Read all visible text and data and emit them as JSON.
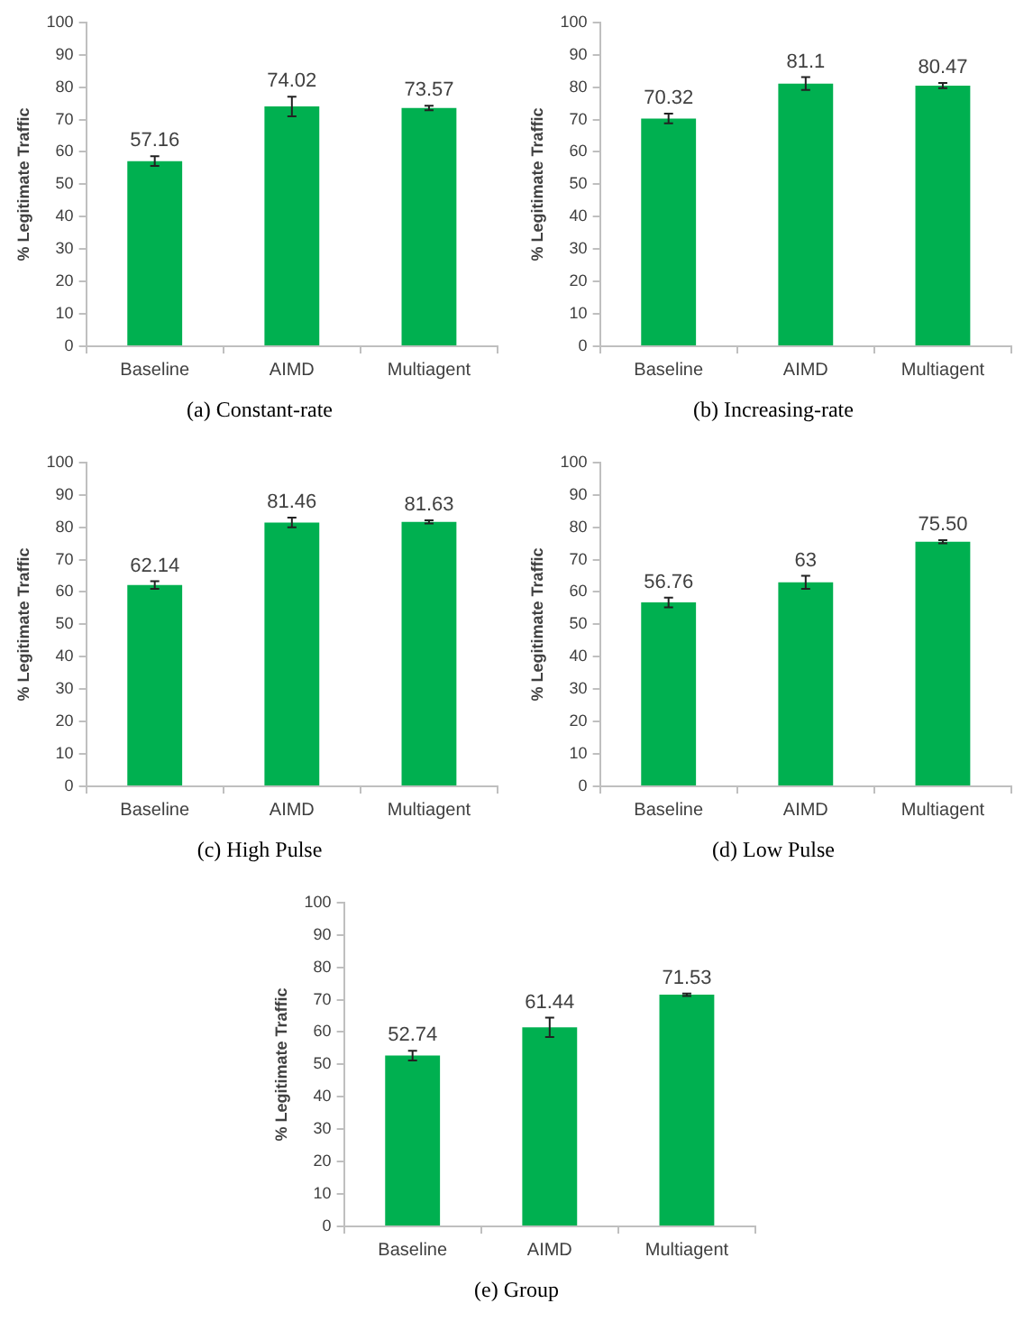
{
  "chart_data": [
    {
      "type": "bar",
      "title": "(a) Constant-rate",
      "ylabel": "% Legitimate Traffic",
      "categories": [
        "Baseline",
        "AIMD",
        "Multiagent"
      ],
      "values": [
        57.16,
        74.02,
        73.57
      ],
      "value_labels": [
        "57.16",
        "74.02",
        "73.57"
      ],
      "errors": [
        1.5,
        3,
        0.7
      ],
      "color": "#00b050",
      "ylim": [
        0,
        100
      ],
      "yticks": [
        0,
        10,
        20,
        30,
        40,
        50,
        60,
        70,
        80,
        90,
        100
      ],
      "grid": false,
      "legend": false
    },
    {
      "type": "bar",
      "title": "(b) Increasing-rate",
      "ylabel": "% Legitimate Traffic",
      "categories": [
        "Baseline",
        "AIMD",
        "Multiagent"
      ],
      "values": [
        70.32,
        81.1,
        80.47
      ],
      "value_labels": [
        "70.32",
        "81.1",
        "80.47"
      ],
      "errors": [
        1.5,
        2,
        0.8
      ],
      "color": "#00b050",
      "ylim": [
        0,
        100
      ],
      "yticks": [
        0,
        10,
        20,
        30,
        40,
        50,
        60,
        70,
        80,
        90,
        100
      ],
      "grid": false,
      "legend": false
    },
    {
      "type": "bar",
      "title": "(c) High Pulse",
      "ylabel": "% Legitimate Traffic",
      "categories": [
        "Baseline",
        "AIMD",
        "Multiagent"
      ],
      "values": [
        62.14,
        81.46,
        81.63
      ],
      "value_labels": [
        "62.14",
        "81.46",
        "81.63"
      ],
      "errors": [
        1.2,
        1.5,
        0.5
      ],
      "color": "#00b050",
      "ylim": [
        0,
        100
      ],
      "yticks": [
        0,
        10,
        20,
        30,
        40,
        50,
        60,
        70,
        80,
        90,
        100
      ],
      "grid": false,
      "legend": false
    },
    {
      "type": "bar",
      "title": "(d) Low Pulse",
      "ylabel": "% Legitimate Traffic",
      "categories": [
        "Baseline",
        "AIMD",
        "Multiagent"
      ],
      "values": [
        56.76,
        63,
        75.5
      ],
      "value_labels": [
        "56.76",
        "63",
        "75.50"
      ],
      "errors": [
        1.5,
        2,
        0.5
      ],
      "color": "#00b050",
      "ylim": [
        0,
        100
      ],
      "yticks": [
        0,
        10,
        20,
        30,
        40,
        50,
        60,
        70,
        80,
        90,
        100
      ],
      "grid": false,
      "legend": false
    },
    {
      "type": "bar",
      "title": "(e) Group",
      "ylabel": "% Legitimate Traffic",
      "categories": [
        "Baseline",
        "AIMD",
        "Multiagent"
      ],
      "values": [
        52.74,
        61.44,
        71.53
      ],
      "value_labels": [
        "52.74",
        "61.44",
        "71.53"
      ],
      "errors": [
        1.5,
        3,
        0.4
      ],
      "color": "#00b050",
      "ylim": [
        0,
        100
      ],
      "yticks": [
        0,
        10,
        20,
        30,
        40,
        50,
        60,
        70,
        80,
        90,
        100
      ],
      "grid": false,
      "legend": false
    }
  ]
}
